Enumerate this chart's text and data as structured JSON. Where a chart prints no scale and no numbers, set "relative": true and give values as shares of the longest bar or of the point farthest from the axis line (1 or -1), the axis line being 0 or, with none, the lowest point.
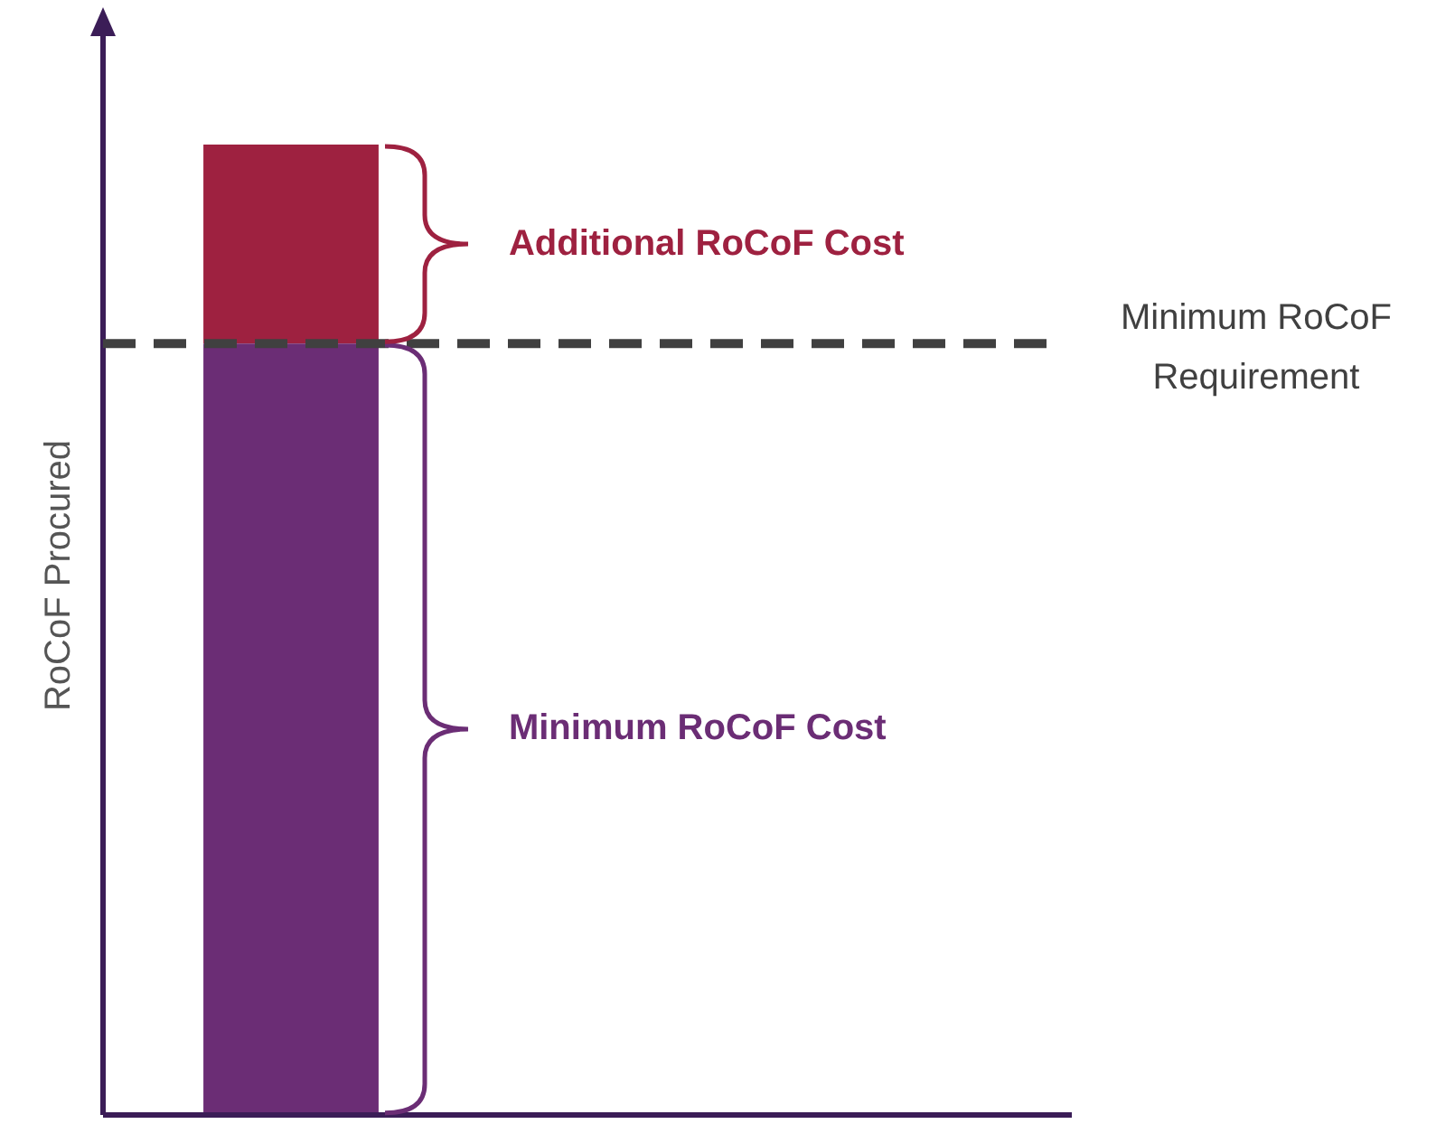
{
  "chart_data": {
    "type": "bar",
    "stacked": true,
    "relative": true,
    "categories": [
      null
    ],
    "ylabel": "RoCoF Procured",
    "legend": false,
    "series": [
      {
        "name": "Minimum RoCoF Cost",
        "color": "#6b2d75",
        "values": [
          0.795
        ]
      },
      {
        "name": "Additional RoCoF Cost",
        "color": "#9e2140",
        "values": [
          0.205
        ]
      }
    ],
    "ref_lines": [
      {
        "axis": "y",
        "value": 0.795,
        "label": "Minimum RoCoF Requirement",
        "color": "#404040",
        "line_style": "dashed"
      }
    ]
  }
}
